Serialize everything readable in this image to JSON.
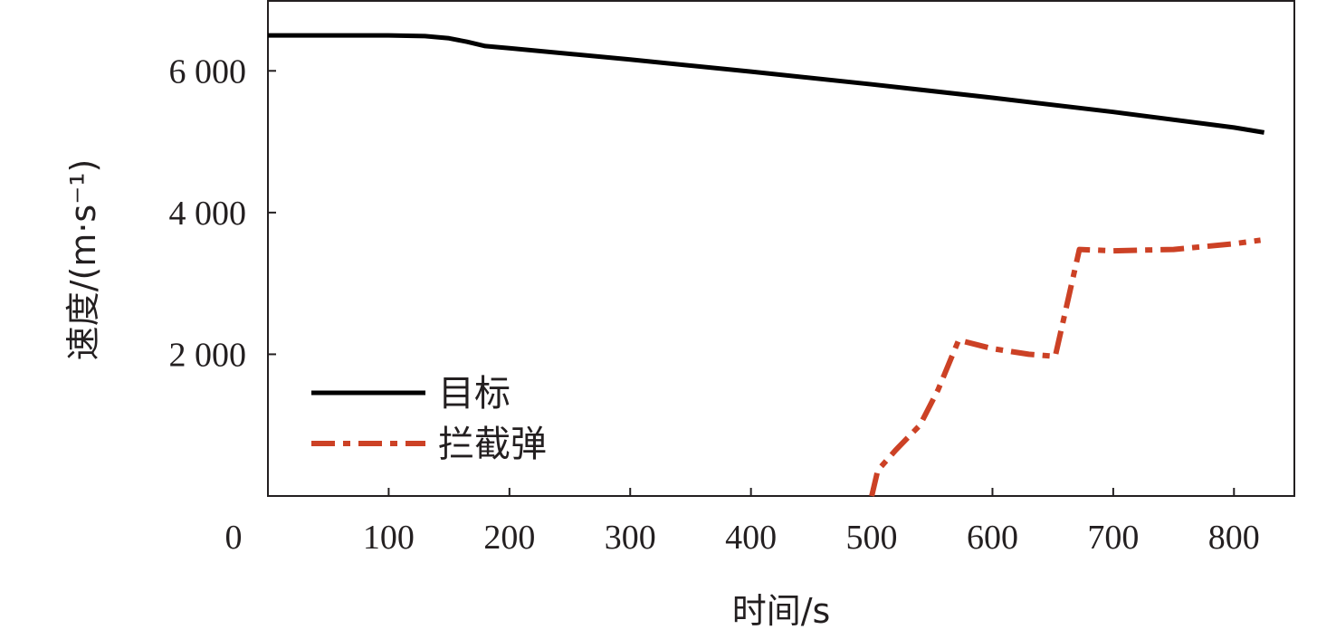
{
  "chart_data": {
    "type": "line",
    "title": "",
    "xlabel": "时间/s",
    "ylabel": "速度/(m·s⁻¹)",
    "xlim": [
      0,
      850
    ],
    "ylim": [
      0,
      7000
    ],
    "x_ticks": [
      0,
      100,
      200,
      300,
      400,
      500,
      600,
      700,
      800
    ],
    "x_tick_labels": [
      "0",
      "100",
      "200",
      "300",
      "400",
      "500",
      "600",
      "700",
      "800"
    ],
    "y_ticks": [
      2000,
      4000,
      6000
    ],
    "y_tick_labels": [
      "2 000",
      "4 000",
      "6 000"
    ],
    "grid": false,
    "legend_position": "bottom-left",
    "series": [
      {
        "name": "目标",
        "color": "#000000",
        "style": "solid",
        "points": [
          [
            0,
            6500
          ],
          [
            50,
            6500
          ],
          [
            100,
            6500
          ],
          [
            130,
            6490
          ],
          [
            150,
            6460
          ],
          [
            165,
            6410
          ],
          [
            180,
            6350
          ],
          [
            200,
            6320
          ],
          [
            300,
            6160
          ],
          [
            400,
            5990
          ],
          [
            500,
            5810
          ],
          [
            600,
            5620
          ],
          [
            700,
            5420
          ],
          [
            800,
            5200
          ],
          [
            825,
            5130
          ]
        ]
      },
      {
        "name": "拦截弹",
        "color": "#cc4125",
        "style": "dashdot",
        "points": [
          [
            500,
            0
          ],
          [
            505,
            360
          ],
          [
            520,
            650
          ],
          [
            540,
            1000
          ],
          [
            555,
            1500
          ],
          [
            572,
            2200
          ],
          [
            600,
            2080
          ],
          [
            630,
            2000
          ],
          [
            652,
            1970
          ],
          [
            672,
            3480
          ],
          [
            700,
            3460
          ],
          [
            750,
            3480
          ],
          [
            800,
            3560
          ],
          [
            822,
            3610
          ]
        ]
      }
    ]
  }
}
